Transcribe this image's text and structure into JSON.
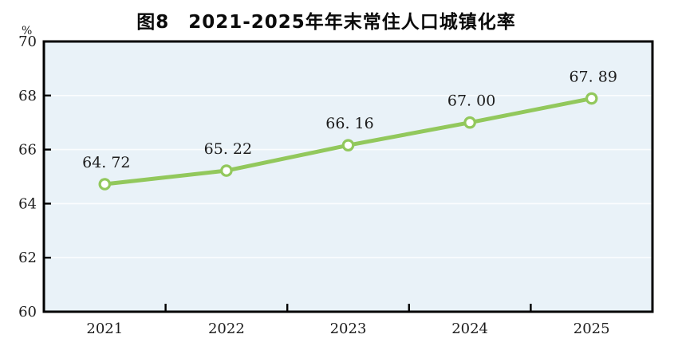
{
  "chart_data": {
    "type": "line",
    "title": "图8　2021-2025年年末常住人口城镇化率",
    "unit": "%",
    "categories": [
      "2021",
      "2022",
      "2023",
      "2024",
      "2025"
    ],
    "series": [
      {
        "name": "年末常住人口城镇化率",
        "values": [
          64.72,
          65.22,
          66.16,
          67.0,
          67.89
        ]
      }
    ],
    "point_labels": [
      "64. 72",
      "65. 22",
      "66. 16",
      "67. 00",
      "67. 89"
    ],
    "ylim": [
      60,
      70
    ],
    "yticks": [
      60,
      62,
      64,
      66,
      68,
      70
    ],
    "grid": true,
    "legend_position": "none",
    "colors": {
      "line": "#92c85c",
      "marker_fill": "#ffffff",
      "marker_stroke": "#92c85c",
      "plot_bg": "#e9f2f8",
      "gridline": "#fbfdfe",
      "axis_frame": "#000000",
      "text": "#1c1c1c"
    }
  }
}
